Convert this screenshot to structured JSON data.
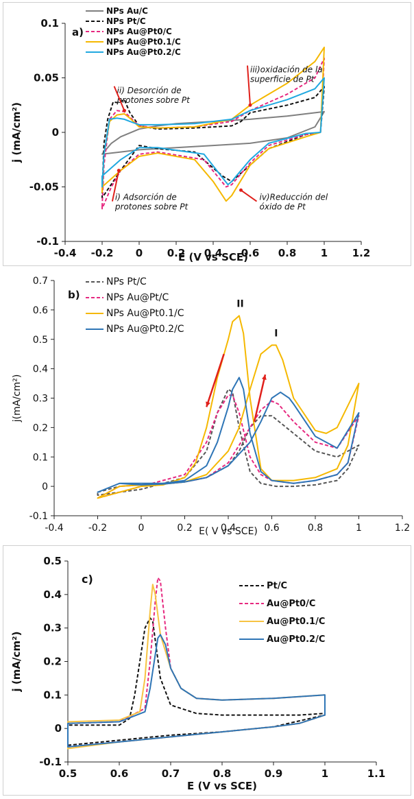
{
  "chart_data": [
    {
      "type": "line",
      "panel_label": "a)",
      "xlabel": "E (V vs SCE)",
      "ylabel": "j (mA/cm²)",
      "xlim": [
        -0.4,
        1.2
      ],
      "ylim": [
        -0.1,
        0.1
      ],
      "xticks": [
        "-0.4",
        "-0.2",
        "0",
        "0.2",
        "0.4",
        "0.6",
        "0.8",
        "1",
        "1.2"
      ],
      "yticks": [
        "0.1",
        "0.05",
        "0",
        "-0.05",
        "-0.1"
      ],
      "legend_position": "top-left",
      "series": [
        {
          "name": "NPs Au/C",
          "color": "#7f7f7f",
          "dash": "solid",
          "x": [
            -0.2,
            -0.15,
            -0.1,
            0.0,
            0.1,
            0.2,
            0.4,
            0.6,
            0.8,
            0.95,
            1.0,
            0.95,
            0.8,
            0.6,
            0.4,
            0.2,
            0.0,
            -0.1,
            -0.2
          ],
          "y": [
            -0.02,
            -0.01,
            -0.004,
            0.003,
            0.006,
            0.008,
            0.01,
            0.012,
            0.015,
            0.018,
            0.019,
            0.005,
            -0.005,
            -0.01,
            -0.012,
            -0.014,
            -0.016,
            -0.018,
            -0.02
          ]
        },
        {
          "name": "NPs Pt/C",
          "color": "#111111",
          "dash": "dash",
          "x": [
            -0.2,
            -0.19,
            -0.17,
            -0.14,
            -0.11,
            -0.08,
            -0.05,
            0.0,
            0.1,
            0.3,
            0.5,
            0.55,
            0.6,
            0.8,
            0.95,
            1.0,
            0.98,
            0.9,
            0.7,
            0.6,
            0.5,
            0.45,
            0.3,
            0.1,
            0.0,
            -0.1,
            -0.2
          ],
          "y": [
            -0.055,
            -0.01,
            0.012,
            0.028,
            0.027,
            0.03,
            0.018,
            0.006,
            0.003,
            0.004,
            0.006,
            0.01,
            0.018,
            0.025,
            0.032,
            0.042,
            0.0,
            -0.002,
            -0.015,
            -0.03,
            -0.045,
            -0.04,
            -0.018,
            -0.015,
            -0.012,
            -0.035,
            -0.06
          ]
        },
        {
          "name": "NPs Au@Pt0/C",
          "color": "#e6287f",
          "dash": "dash",
          "x": [
            -0.2,
            -0.19,
            -0.16,
            -0.12,
            -0.08,
            -0.05,
            0.0,
            0.1,
            0.3,
            0.5,
            0.6,
            0.8,
            0.95,
            1.0,
            0.98,
            0.9,
            0.7,
            0.6,
            0.5,
            0.47,
            0.35,
            0.1,
            0.0,
            -0.1,
            -0.15,
            -0.2
          ],
          "y": [
            -0.068,
            -0.03,
            0.012,
            0.02,
            0.019,
            0.014,
            0.006,
            0.004,
            0.005,
            0.01,
            0.02,
            0.035,
            0.05,
            0.068,
            0.0,
            -0.002,
            -0.012,
            -0.028,
            -0.048,
            -0.05,
            -0.025,
            -0.018,
            -0.02,
            -0.035,
            -0.05,
            -0.07
          ]
        },
        {
          "name": "NPs Au@Pt0.1/C",
          "color": "#f5b800",
          "dash": "solid",
          "x": [
            -0.2,
            -0.19,
            -0.16,
            -0.12,
            -0.08,
            -0.05,
            0.0,
            0.1,
            0.3,
            0.5,
            0.6,
            0.8,
            0.95,
            1.0,
            0.98,
            0.9,
            0.7,
            0.6,
            0.5,
            0.47,
            0.4,
            0.3,
            0.1,
            0.0,
            -0.1,
            -0.2
          ],
          "y": [
            -0.055,
            -0.02,
            0.01,
            0.016,
            0.017,
            0.013,
            0.005,
            0.004,
            0.005,
            0.012,
            0.025,
            0.045,
            0.065,
            0.078,
            0.0,
            -0.004,
            -0.015,
            -0.03,
            -0.058,
            -0.063,
            -0.045,
            -0.025,
            -0.019,
            -0.022,
            -0.035,
            -0.05
          ]
        },
        {
          "name": "NPs Au@Pt0.2/C",
          "color": "#1fa8e0",
          "dash": "solid",
          "x": [
            -0.2,
            -0.19,
            -0.16,
            -0.12,
            -0.08,
            -0.05,
            0.0,
            0.1,
            0.3,
            0.5,
            0.6,
            0.8,
            0.95,
            1.0,
            0.98,
            0.9,
            0.7,
            0.6,
            0.5,
            0.48,
            0.35,
            0.1,
            0.0,
            -0.1,
            -0.2
          ],
          "y": [
            -0.05,
            -0.02,
            0.012,
            0.013,
            0.012,
            0.01,
            0.007,
            0.007,
            0.008,
            0.012,
            0.02,
            0.03,
            0.04,
            0.05,
            0.0,
            -0.001,
            -0.01,
            -0.025,
            -0.045,
            -0.048,
            -0.02,
            -0.014,
            -0.014,
            -0.025,
            -0.04
          ]
        }
      ],
      "annotations": [
        {
          "lines": [
            "ii) Desorción de",
            "protones sobre Pt"
          ],
          "x": -0.12,
          "y": 0.036,
          "arrow_to": [
            -0.08,
            0.02
          ]
        },
        {
          "lines": [
            "iii)oxidación de la",
            "superficie de Pt"
          ],
          "x": 0.6,
          "y": 0.055,
          "arrow_to": [
            0.6,
            0.025
          ]
        },
        {
          "lines": [
            "i) Adsorción de",
            "protones sobre Pt"
          ],
          "x": -0.13,
          "y": -0.062,
          "arrow_to": [
            -0.11,
            -0.035
          ]
        },
        {
          "lines": [
            "iv)Reducción del",
            "óxido de Pt"
          ],
          "x": 0.65,
          "y": -0.062,
          "arrow_to": [
            0.55,
            -0.053
          ]
        }
      ]
    },
    {
      "type": "line",
      "panel_label": "b)",
      "xlabel": "E( V vs SCE)",
      "ylabel": "j(mA/cm²)",
      "xlim": [
        -0.4,
        1.2
      ],
      "ylim": [
        -0.1,
        0.7
      ],
      "xticks": [
        "-0.4",
        "-0.2",
        "0",
        "0.2",
        "0.4",
        "0.6",
        "0.8",
        "1",
        "1.2"
      ],
      "yticks": [
        "0.7",
        "0.6",
        "0.5",
        "0.4",
        "0.3",
        "0.2",
        "0.1",
        "0",
        "-0.1"
      ],
      "legend_position": "top-left",
      "series": [
        {
          "name": "NPs Pt/C",
          "color": "#555555",
          "dash": "dash",
          "x": [
            -0.2,
            -0.1,
            0.0,
            0.1,
            0.2,
            0.3,
            0.35,
            0.4,
            0.45,
            0.5,
            0.55,
            0.6,
            0.7,
            0.8,
            0.9,
            1.0,
            0.95,
            0.9,
            0.8,
            0.7,
            0.62,
            0.55,
            0.5,
            0.45,
            0.42,
            0.4,
            0.35,
            0.3,
            0.2,
            0.0,
            -0.2
          ],
          "y": [
            -0.02,
            0.0,
            0.005,
            0.008,
            0.015,
            0.03,
            0.05,
            0.07,
            0.12,
            0.2,
            0.24,
            0.24,
            0.18,
            0.12,
            0.1,
            0.14,
            0.06,
            0.02,
            0.005,
            0.0,
            0.0,
            0.01,
            0.05,
            0.2,
            0.32,
            0.33,
            0.25,
            0.12,
            0.03,
            -0.01,
            -0.03
          ]
        },
        {
          "name": "NPs Au@Pt/C",
          "color": "#e6287f",
          "dash": "dash",
          "x": [
            -0.2,
            -0.1,
            0.0,
            0.1,
            0.2,
            0.3,
            0.4,
            0.45,
            0.5,
            0.55,
            0.6,
            0.63,
            0.7,
            0.8,
            0.9,
            1.0,
            0.95,
            0.9,
            0.8,
            0.7,
            0.6,
            0.55,
            0.5,
            0.45,
            0.42,
            0.4,
            0.35,
            0.3,
            0.2,
            0.0,
            -0.2
          ],
          "y": [
            -0.04,
            0.0,
            0.005,
            0.008,
            0.015,
            0.03,
            0.08,
            0.14,
            0.2,
            0.26,
            0.29,
            0.28,
            0.22,
            0.15,
            0.13,
            0.24,
            0.08,
            0.04,
            0.02,
            0.01,
            0.02,
            0.04,
            0.1,
            0.25,
            0.31,
            0.31,
            0.25,
            0.15,
            0.04,
            0.0,
            -0.04
          ]
        },
        {
          "name": "NPs Au@Pt0.1/C",
          "color": "#f5b800",
          "dash": "solid",
          "x": [
            -0.2,
            -0.1,
            0.0,
            0.1,
            0.2,
            0.3,
            0.4,
            0.45,
            0.5,
            0.55,
            0.6,
            0.62,
            0.65,
            0.7,
            0.8,
            0.85,
            0.9,
            1.0,
            0.95,
            0.9,
            0.8,
            0.7,
            0.6,
            0.55,
            0.5,
            0.47,
            0.45,
            0.42,
            0.4,
            0.35,
            0.3,
            0.25,
            0.2,
            0.1,
            0.0,
            -0.2
          ],
          "y": [
            -0.04,
            0.0,
            0.005,
            0.008,
            0.015,
            0.04,
            0.12,
            0.2,
            0.33,
            0.45,
            0.48,
            0.48,
            0.43,
            0.3,
            0.19,
            0.18,
            0.2,
            0.35,
            0.14,
            0.06,
            0.03,
            0.02,
            0.02,
            0.06,
            0.3,
            0.52,
            0.58,
            0.56,
            0.5,
            0.37,
            0.2,
            0.08,
            0.03,
            0.005,
            0.0,
            -0.04
          ]
        },
        {
          "name": "NPs Au@Pt0.2/C",
          "color": "#2e75b6",
          "dash": "solid",
          "x": [
            -0.2,
            -0.1,
            0.0,
            0.1,
            0.2,
            0.3,
            0.4,
            0.5,
            0.55,
            0.6,
            0.64,
            0.68,
            0.7,
            0.8,
            0.9,
            1.0,
            0.95,
            0.9,
            0.8,
            0.7,
            0.6,
            0.55,
            0.5,
            0.47,
            0.45,
            0.42,
            0.4,
            0.35,
            0.3,
            0.2,
            0.1,
            -0.1,
            -0.2
          ],
          "y": [
            -0.02,
            0.01,
            0.005,
            0.008,
            0.015,
            0.03,
            0.07,
            0.15,
            0.22,
            0.3,
            0.32,
            0.3,
            0.28,
            0.17,
            0.13,
            0.25,
            0.08,
            0.04,
            0.02,
            0.01,
            0.02,
            0.05,
            0.18,
            0.33,
            0.37,
            0.33,
            0.27,
            0.15,
            0.07,
            0.02,
            0.01,
            0.01,
            -0.02
          ]
        }
      ],
      "annotations": [
        {
          "text": "II",
          "x": 0.455,
          "y": 0.61
        },
        {
          "text": "I",
          "x": 0.62,
          "y": 0.51
        }
      ]
    },
    {
      "type": "line",
      "panel_label": "c)",
      "xlabel": "E (V vs SCE)",
      "ylabel": "j (mA/cm²)",
      "xlim": [
        0.5,
        1.1
      ],
      "ylim": [
        -0.1,
        0.5
      ],
      "xticks": [
        "0.5",
        "0.6",
        "0.7",
        "0.8",
        "0.9",
        "1",
        "1.1"
      ],
      "yticks": [
        "0.5",
        "0.4",
        "0.3",
        "0.2",
        "0.1",
        "0",
        "-0.1"
      ],
      "legend_position": "top-right",
      "series": [
        {
          "name": "Pt/C",
          "color": "#111111",
          "dash": "dash",
          "x": [
            0.5,
            0.6,
            0.7,
            0.8,
            0.9,
            1.0,
            1.0,
            0.95,
            0.9,
            0.8,
            0.75,
            0.7,
            0.68,
            0.665,
            0.66,
            0.65,
            0.64,
            0.63,
            0.62,
            0.6,
            0.5
          ],
          "y": [
            -0.05,
            -0.035,
            -0.02,
            -0.01,
            0.005,
            0.04,
            0.045,
            0.04,
            0.04,
            0.04,
            0.045,
            0.07,
            0.15,
            0.32,
            0.33,
            0.3,
            0.2,
            0.1,
            0.03,
            0.01,
            0.01
          ]
        },
        {
          "name": "Au@Pt0/C",
          "color": "#e6287f",
          "dash": "dash",
          "x": [
            0.5,
            0.6,
            0.7,
            0.8,
            0.9,
            0.95,
            1.0,
            1.0,
            0.95,
            0.9,
            0.8,
            0.75,
            0.72,
            0.7,
            0.69,
            0.68,
            0.675,
            0.67,
            0.66,
            0.65,
            0.6,
            0.5
          ],
          "y": [
            -0.055,
            -0.04,
            -0.025,
            -0.01,
            0.005,
            0.015,
            0.04,
            0.1,
            0.095,
            0.09,
            0.085,
            0.09,
            0.12,
            0.18,
            0.3,
            0.44,
            0.45,
            0.38,
            0.2,
            0.06,
            0.02,
            0.015
          ]
        },
        {
          "name": "Au@Pt0.1/C",
          "color": "#f7c342",
          "dash": "solid",
          "x": [
            0.5,
            0.6,
            0.7,
            0.8,
            0.9,
            0.95,
            1.0,
            1.0,
            0.95,
            0.9,
            0.8,
            0.75,
            0.72,
            0.7,
            0.68,
            0.67,
            0.665,
            0.66,
            0.65,
            0.64,
            0.6,
            0.5
          ],
          "y": [
            -0.06,
            -0.04,
            -0.025,
            -0.01,
            0.005,
            0.015,
            0.04,
            0.1,
            0.095,
            0.09,
            0.085,
            0.09,
            0.12,
            0.18,
            0.28,
            0.4,
            0.43,
            0.35,
            0.15,
            0.05,
            0.025,
            0.02
          ]
        },
        {
          "name": "Au@Pt0.2/C",
          "color": "#2e75b6",
          "dash": "solid",
          "x": [
            0.5,
            0.6,
            0.7,
            0.8,
            0.9,
            0.95,
            1.0,
            1.0,
            0.95,
            0.9,
            0.8,
            0.75,
            0.72,
            0.7,
            0.69,
            0.68,
            0.675,
            0.67,
            0.66,
            0.65,
            0.6,
            0.5
          ],
          "y": [
            -0.055,
            -0.04,
            -0.025,
            -0.01,
            0.005,
            0.015,
            0.04,
            0.1,
            0.095,
            0.09,
            0.085,
            0.09,
            0.12,
            0.18,
            0.25,
            0.28,
            0.27,
            0.22,
            0.12,
            0.05,
            0.02,
            0.015
          ]
        }
      ]
    }
  ]
}
